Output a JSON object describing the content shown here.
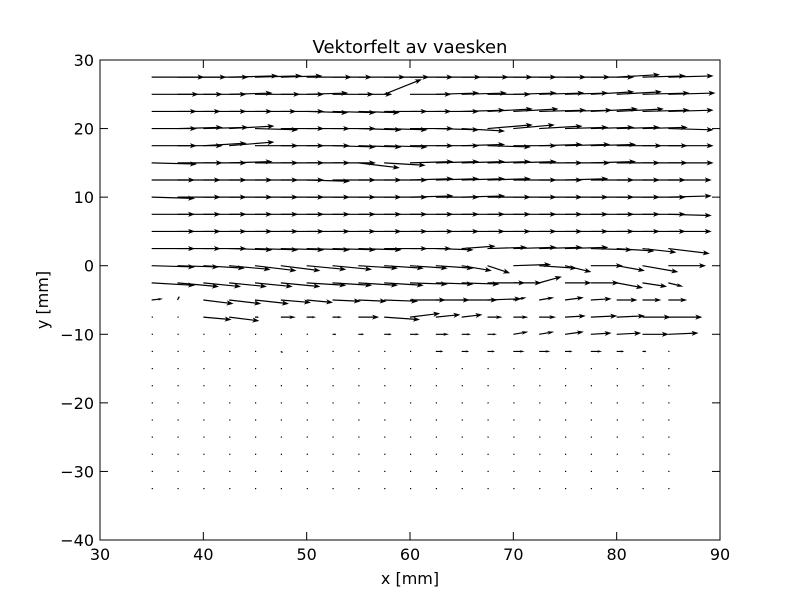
{
  "chart_data": {
    "type": "quiver",
    "title": "Vektorfelt av vaesken",
    "xlabel": "x [mm]",
    "ylabel": "y [mm]",
    "xlim": [
      30,
      90
    ],
    "ylim": [
      -40,
      30
    ],
    "xticks": [
      30,
      40,
      50,
      60,
      70,
      80,
      90
    ],
    "yticks": [
      -40,
      -30,
      -20,
      -10,
      0,
      10,
      20,
      30
    ],
    "xtick_labels": [
      "30",
      "40",
      "50",
      "60",
      "70",
      "80",
      "90"
    ],
    "ytick_labels": [
      "−40",
      "−30",
      "−20",
      "−10",
      "0",
      "10",
      "20",
      "30"
    ],
    "grid": false,
    "legend": "none",
    "arrow_color": "#000000",
    "grid_x_start": 35,
    "grid_x_step": 2.5,
    "grid_x_count": 21,
    "grid_y_start": 27.5,
    "grid_y_step": -2.5,
    "rows": [
      {
        "y": 27.5,
        "u": [
          2.8,
          2.6,
          2.4,
          2.6,
          2.5,
          2.2,
          2.4,
          2.1,
          2.5,
          2.4,
          2.3,
          2.4,
          2.5,
          2.4,
          2.3,
          2.5,
          2.4,
          2.3,
          2.3,
          2.3,
          2.4
        ],
        "v": [
          0,
          0,
          0,
          0.1,
          0.1,
          0.1,
          0,
          0,
          0,
          0,
          0,
          0,
          0,
          0,
          0,
          0,
          0,
          0,
          0.2,
          0.1,
          0.1
        ]
      },
      {
        "y": 25.0,
        "u": [
          2.5,
          2.4,
          2.3,
          2.3,
          2.4,
          2.3,
          2.2,
          2.2,
          1.8,
          2.0,
          2.2,
          2.3,
          2.4,
          2.3,
          2.3,
          2.4,
          2.3,
          2.3,
          2.4,
          2.5,
          2.5
        ],
        "v": [
          0,
          0,
          0,
          0.1,
          0,
          0,
          0.1,
          0,
          0,
          1.2,
          0,
          0.1,
          0.1,
          0,
          0.1,
          0.1,
          0.1,
          0.2,
          0.2,
          0.1,
          0.1
        ]
      },
      {
        "y": 22.5,
        "u": [
          2.4,
          2.3,
          2.3,
          2.3,
          2.2,
          2.3,
          2.2,
          2.3,
          2.2,
          2.3,
          2.2,
          2.3,
          2.3,
          2.4,
          2.4,
          2.5,
          2.5,
          2.5,
          2.5,
          2.5,
          2.4
        ],
        "v": [
          0,
          0,
          0,
          0,
          0,
          0,
          -0.1,
          -0.1,
          -0.1,
          0,
          0,
          0,
          0.1,
          0.2,
          0.2,
          0.1,
          0.1,
          0.2,
          0.2,
          0.1,
          0.1
        ]
      },
      {
        "y": 20.0,
        "u": [
          2.4,
          2.4,
          2.4,
          2.4,
          2.3,
          2.3,
          2.3,
          2.3,
          2.3,
          2.3,
          2.3,
          2.3,
          2.3,
          2.4,
          2.2,
          2.3,
          2.3,
          2.3,
          2.3,
          2.4,
          2.4
        ],
        "v": [
          0,
          0.1,
          0.1,
          0.2,
          -0.1,
          0,
          0,
          0,
          -0.1,
          -0.1,
          0,
          -0.1,
          -0.2,
          0.3,
          0.3,
          0.2,
          0.1,
          0.1,
          0.1,
          0.1,
          -0.1
        ]
      },
      {
        "y": 17.5,
        "u": [
          2.4,
          2.4,
          2.3,
          2.4,
          2.3,
          2.3,
          2.3,
          2.3,
          2.3,
          2.3,
          2.3,
          2.3,
          2.3,
          2.3,
          2.3,
          2.3,
          2.4,
          2.4,
          2.4,
          2.4,
          2.4
        ],
        "v": [
          0,
          0,
          0.2,
          0.3,
          0,
          0,
          0,
          -0.1,
          -0.1,
          -0.1,
          0,
          0,
          0.1,
          -0.1,
          0,
          0.1,
          0.1,
          0.1,
          0,
          0,
          0
        ]
      },
      {
        "y": 15.0,
        "u": [
          2.4,
          2.4,
          2.3,
          2.3,
          2.3,
          2.3,
          2.3,
          2.3,
          2.2,
          2.2,
          2.3,
          2.3,
          2.3,
          2.3,
          2.3,
          2.3,
          2.4,
          2.4,
          2.3,
          2.4,
          2.4
        ],
        "v": [
          -0.1,
          0,
          0,
          0.1,
          0,
          0,
          0,
          0,
          -0.4,
          -0.2,
          0.1,
          0.1,
          0.1,
          0.1,
          0.1,
          0,
          0,
          0.1,
          0,
          0,
          0
        ]
      },
      {
        "y": 12.5,
        "u": [
          2.3,
          2.3,
          2.3,
          2.3,
          2.3,
          2.3,
          2.3,
          2.3,
          2.3,
          2.3,
          2.3,
          2.3,
          2.3,
          2.3,
          2.3,
          2.3,
          2.3,
          2.3,
          2.3,
          2.3,
          2.3
        ],
        "v": [
          0,
          0,
          0,
          0,
          0,
          0,
          -0.1,
          0,
          0,
          0,
          0.1,
          0.1,
          0.1,
          0.1,
          0,
          0,
          0.1,
          0,
          0,
          0,
          0
        ]
      },
      {
        "y": 10.0,
        "u": [
          2.3,
          2.3,
          2.3,
          2.3,
          2.3,
          2.3,
          2.3,
          2.3,
          2.3,
          2.3,
          2.3,
          2.3,
          2.3,
          2.3,
          2.3,
          2.3,
          2.3,
          2.3,
          2.3,
          2.3,
          2.3
        ],
        "v": [
          -0.1,
          0,
          0,
          0,
          0,
          0,
          0,
          0,
          0,
          0,
          0.1,
          0,
          0.1,
          0,
          0,
          0,
          0,
          0,
          0,
          0,
          0.1
        ]
      },
      {
        "y": 7.5,
        "u": [
          2.3,
          2.3,
          2.3,
          2.3,
          2.3,
          2.3,
          2.3,
          2.3,
          2.3,
          2.3,
          2.3,
          2.3,
          2.3,
          2.3,
          2.3,
          2.3,
          2.3,
          2.3,
          2.3,
          2.3,
          2.3
        ],
        "v": [
          0,
          0,
          0,
          0,
          0,
          0,
          0,
          0,
          0,
          0,
          0,
          0,
          0,
          0,
          0,
          0,
          0,
          0,
          0,
          0,
          -0.1
        ]
      },
      {
        "y": 5.0,
        "u": [
          2.3,
          2.3,
          2.3,
          2.3,
          2.3,
          2.3,
          2.3,
          2.3,
          2.3,
          2.3,
          2.3,
          2.3,
          2.3,
          2.3,
          2.3,
          2.3,
          2.3,
          2.3,
          2.3,
          2.3,
          2.3
        ],
        "v": [
          0,
          0,
          0,
          0,
          0,
          0,
          0,
          0,
          0,
          0,
          0,
          0,
          0,
          0,
          0,
          0,
          0,
          0,
          0,
          0,
          0
        ]
      },
      {
        "y": 2.5,
        "u": [
          2.3,
          2.3,
          2.3,
          2.3,
          2.3,
          2.3,
          2.3,
          2.3,
          2.3,
          2.3,
          2.2,
          2.0,
          1.8,
          2.1,
          2.3,
          2.3,
          2.3,
          2.2,
          2.0,
          1.8,
          2.2
        ],
        "v": [
          0,
          0,
          0,
          -0.1,
          -0.1,
          -0.1,
          -0.1,
          -0.1,
          -0.1,
          0,
          0,
          -0.1,
          0.2,
          0.1,
          0.1,
          0.1,
          0.1,
          -0.1,
          -0.2,
          -0.3,
          -0.4
        ]
      },
      {
        "y": 0.0,
        "u": [
          2.3,
          2.2,
          2.2,
          2.2,
          2.2,
          2.1,
          2.1,
          2.1,
          2.1,
          2.1,
          2.0,
          2.0,
          1.6,
          1.2,
          2.0,
          2.0,
          1.4,
          1.7,
          1.5,
          1.9,
          2.0
        ],
        "v": [
          -0.1,
          -0.1,
          -0.2,
          -0.3,
          -0.4,
          -0.4,
          -0.3,
          -0.3,
          -0.2,
          -0.2,
          -0.2,
          -0.2,
          -0.4,
          -0.6,
          0.1,
          -0.2,
          -0.5,
          0,
          -0.4,
          -0.5,
          0
        ]
      },
      {
        "y": -2.5,
        "u": [
          2.3,
          2.2,
          2.0,
          2.0,
          2.0,
          2.1,
          2.1,
          2.1,
          2.1,
          2.1,
          2.0,
          2.0,
          2.0,
          2.0,
          1.5,
          1.2,
          1.4,
          1.5,
          1.4,
          1.3,
          0.8
        ],
        "v": [
          -0.2,
          -0.3,
          -0.3,
          -0.3,
          -0.3,
          -0.3,
          -0.2,
          -0.2,
          -0.2,
          -0.2,
          -0.1,
          -0.1,
          -0.1,
          0,
          0,
          0.5,
          0,
          0,
          -0.4,
          -0.3,
          -0.3
        ]
      },
      {
        "y": -5.0,
        "u": [
          0.6,
          0.1,
          1.6,
          1.7,
          1.8,
          1.6,
          1.4,
          1.5,
          1.5,
          1.8,
          1.9,
          1.8,
          1.9,
          1.8,
          0.7,
          0.8,
          1.0,
          1.1,
          1.1,
          1.0,
          1.0
        ],
        "v": [
          0.1,
          0.3,
          -0.3,
          -0.3,
          -0.3,
          -0.2,
          -0.2,
          -0.1,
          -0.1,
          -0.1,
          0,
          0,
          0,
          0.1,
          0.2,
          0.2,
          0.2,
          0.1,
          0,
          0,
          0
        ]
      },
      {
        "y": -7.5,
        "u": [
          0.05,
          0.05,
          1.5,
          1.6,
          0.2,
          0.8,
          0.5,
          0.5,
          1.1,
          1.9,
          1.6,
          1.3,
          1.1,
          0.8,
          0.8,
          0.9,
          1.1,
          1.4,
          1.5,
          1.5,
          1.8
        ],
        "v": [
          0,
          0,
          -0.2,
          -0.3,
          0,
          0,
          0,
          0,
          0,
          -0.2,
          0.3,
          0.2,
          0.2,
          0,
          0,
          0,
          0.1,
          0.1,
          0.1,
          0,
          0
        ]
      },
      {
        "y": -10.0,
        "u": [
          0.05,
          0.05,
          0.05,
          0.05,
          0.05,
          0.05,
          0.1,
          0.2,
          0.3,
          0.4,
          0.5,
          0.7,
          0.5,
          0.5,
          0.8,
          0.8,
          1.0,
          1.1,
          1.3,
          1.4,
          1.6
        ],
        "v": [
          0,
          0,
          0,
          0,
          0,
          0,
          0,
          0,
          0,
          0,
          0,
          0,
          0,
          0,
          0.2,
          0.2,
          0.2,
          0.1,
          0.1,
          0,
          0.1
        ]
      },
      {
        "y": -12.5,
        "u": [
          0.05,
          0.05,
          0.05,
          0.05,
          0.05,
          0.1,
          0.05,
          0.05,
          0.05,
          0.05,
          0.1,
          0.4,
          0.4,
          0.4,
          0.6,
          0.6,
          0.4,
          0.6,
          0.4,
          0.2,
          0.05
        ],
        "v": [
          0,
          0,
          0,
          0,
          0,
          -0.1,
          0,
          0,
          0,
          0,
          0,
          0,
          0,
          0,
          0,
          0,
          0,
          0,
          0,
          0,
          0
        ]
      },
      {
        "y": -15.0,
        "u": [
          0.05,
          0.05,
          0.05,
          0.05,
          0.05,
          0.05,
          0.05,
          0.05,
          0.05,
          0.05,
          0.05,
          0.05,
          0.05,
          0.05,
          0.05,
          0.05,
          0.05,
          0.05,
          0.05,
          0.05,
          0.05
        ],
        "v": [
          0,
          0,
          0,
          0,
          0,
          0,
          0,
          0,
          0,
          0,
          0,
          0,
          0,
          0,
          0,
          0,
          0,
          0,
          0,
          0,
          0
        ]
      },
      {
        "y": -17.5,
        "u": [
          0.05,
          0.05,
          0.05,
          0.05,
          0.05,
          0.05,
          0.05,
          0.05,
          0.05,
          0.05,
          0.05,
          0.05,
          0.05,
          0.05,
          0.05,
          0.05,
          0.05,
          0.05,
          0.05,
          0.05,
          0.05
        ],
        "v": [
          0,
          0,
          0,
          0,
          0,
          0,
          0,
          0,
          0,
          0,
          0,
          0,
          0,
          0,
          0,
          0,
          0,
          0,
          0,
          0,
          0
        ]
      },
      {
        "y": -20.0,
        "u": [
          0.05,
          0.05,
          0.05,
          0.05,
          0.05,
          0.05,
          0.05,
          0.05,
          0.05,
          0.05,
          0.05,
          0.05,
          0.05,
          0.05,
          0.05,
          0.05,
          0.05,
          0.05,
          0.05,
          0.05,
          0.05
        ],
        "v": [
          0,
          0,
          0,
          0,
          0,
          0,
          0,
          0,
          0,
          0,
          0,
          0,
          0,
          0,
          0,
          0,
          0,
          0,
          0,
          0,
          0
        ]
      },
      {
        "y": -22.5,
        "u": [
          0.05,
          0.05,
          0.05,
          0.05,
          0.05,
          0.05,
          0.05,
          0.05,
          0.05,
          0.05,
          0.05,
          0.05,
          0.05,
          0.05,
          0.05,
          0.05,
          0.05,
          0.05,
          0.05,
          0.05,
          0.05
        ],
        "v": [
          0,
          0,
          0,
          0,
          0,
          0,
          0,
          0,
          0,
          0,
          0,
          0,
          0,
          0,
          0,
          0,
          0,
          0,
          0,
          0,
          0
        ]
      },
      {
        "y": -25.0,
        "u": [
          0.05,
          0.05,
          0.05,
          0.05,
          0.05,
          0.05,
          0.05,
          0.05,
          0.05,
          0.05,
          0.05,
          0.05,
          0.05,
          0.05,
          0.05,
          0.05,
          0.05,
          0.05,
          0.05,
          0.05,
          0.05
        ],
        "v": [
          0,
          0,
          0,
          0,
          0,
          0,
          0,
          0,
          0,
          0,
          0,
          0,
          0,
          0,
          0,
          0,
          0,
          0,
          0,
          0,
          0
        ]
      },
      {
        "y": -27.5,
        "u": [
          0.05,
          0.05,
          0.05,
          0.05,
          0.05,
          0.05,
          0.05,
          0.05,
          0.05,
          0.05,
          0.05,
          0.05,
          0.05,
          0.05,
          0.05,
          0.05,
          0.05,
          0.05,
          0.05,
          0.05,
          0.05
        ],
        "v": [
          0,
          0,
          0,
          0,
          0,
          0,
          0,
          0,
          0,
          0,
          0,
          0,
          0,
          0,
          0,
          0,
          0,
          0,
          0,
          0,
          0
        ]
      },
      {
        "y": -30.0,
        "u": [
          0.05,
          0.05,
          0.05,
          0.05,
          0.05,
          0.05,
          0.05,
          0.05,
          0.05,
          0.05,
          0.05,
          0.05,
          0.05,
          0.05,
          0.05,
          0.05,
          0.05,
          0.05,
          0.05,
          0.05,
          0.05
        ],
        "v": [
          0,
          0,
          0,
          0,
          0,
          0,
          0,
          0,
          0,
          0,
          0,
          0,
          0,
          0,
          0,
          0,
          0,
          0,
          0,
          0,
          0
        ]
      },
      {
        "y": -32.5,
        "u": [
          0.05,
          0.05,
          0.05,
          0.05,
          0.05,
          0.05,
          0.05,
          0.05,
          0.05,
          0.05,
          0.05,
          0.05,
          0.05,
          0.05,
          0.05,
          0.05,
          0.05,
          0.05,
          0.05,
          0.05,
          0.05
        ],
        "v": [
          0,
          0,
          0,
          0,
          0,
          0,
          0,
          0,
          0,
          0,
          0,
          0,
          0,
          0,
          0,
          0,
          0,
          0,
          0,
          0,
          0
        ]
      }
    ]
  }
}
